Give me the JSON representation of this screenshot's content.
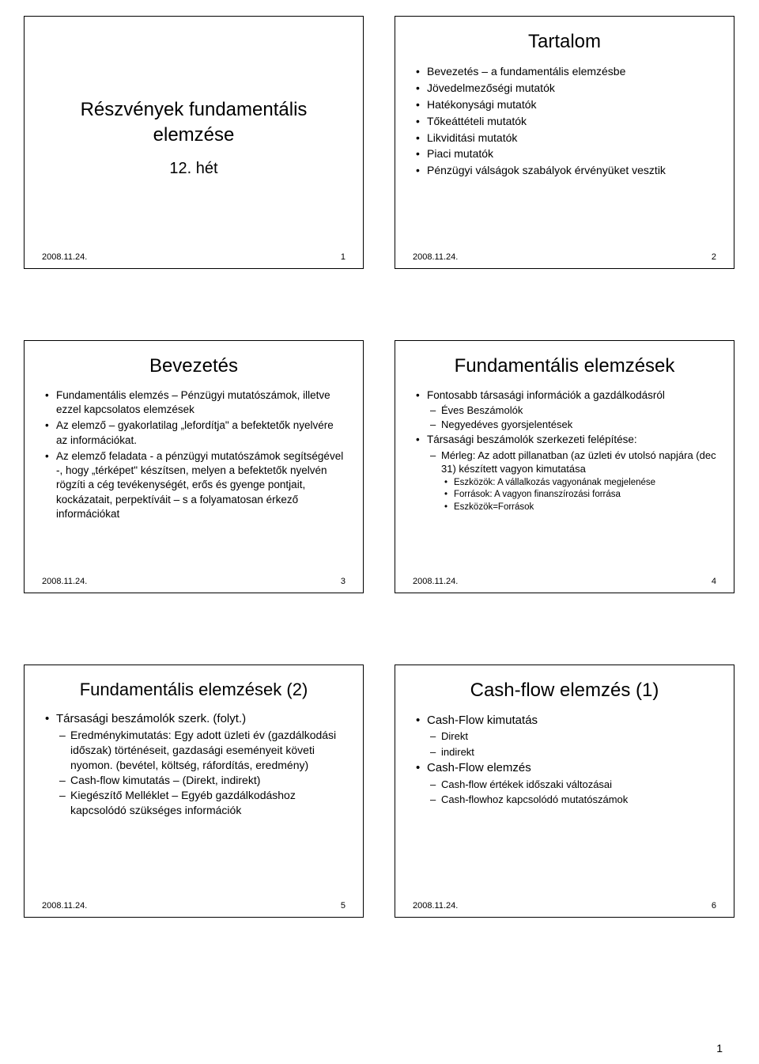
{
  "page": {
    "number": "1",
    "background": "#ffffff",
    "text_color": "#000000"
  },
  "slides": [
    {
      "main_title": "Részvények fundamentális elemzése",
      "sub_title": "12. hét",
      "date": "2008.11.24.",
      "num": "1"
    },
    {
      "title": "Tartalom",
      "items": [
        "Bevezetés – a fundamentális elemzésbe",
        "Jövedelmezőségi mutatók",
        "Hatékonysági mutatók",
        "Tőkeáttételi mutatók",
        "Likviditási mutatók",
        "Piaci mutatók",
        "Pénzügyi válságok szabályok érvényüket vesztik"
      ],
      "date": "2008.11.24.",
      "num": "2"
    },
    {
      "title": "Bevezetés",
      "items": [
        "Fundamentális elemzés – Pénzügyi mutatószámok, illetve ezzel kapcsolatos elemzések",
        "Az elemző – gyakorlatilag „lefordítja\" a befektetők nyelvére az információkat.",
        "Az elemző feladata - a pénzügyi mutatószámok segítségével -, hogy „térképet\" készítsen, melyen a befektetők nyelvén rögzíti a cég tevékenységét, erős és gyenge pontjait, kockázatait, perpektíváit – s a folyamatosan érkező információkat"
      ],
      "date": "2008.11.24.",
      "num": "3"
    },
    {
      "title": "Fundamentális elemzések",
      "item1": "Fontosabb társasági információk a gazdálkodásról",
      "sub1a": "Éves Beszámolók",
      "sub1b": "Negyedéves gyorsjelentések",
      "item2": "Társasági beszámolók szerkezeti felépítése:",
      "sub2a": "Mérleg: Az adott pillanatban (az üzleti év utolsó napjára (dec 31) készített vagyon kimutatása",
      "subsub1": "Eszközök: A vállalkozás vagyonának megjelenése",
      "subsub2": "Források: A vagyon finanszírozási forrása",
      "subsub3": "Eszközök=Források",
      "date": "2008.11.24.",
      "num": "4"
    },
    {
      "title": "Fundamentális elemzések (2)",
      "item1": "Társasági beszámolók szerk. (folyt.)",
      "sub1": "Eredménykimutatás: Egy adott üzleti év (gazdálkodási időszak) történéseit, gazdasági eseményeit követi nyomon. (bevétel, költség, ráfordítás, eredmény)",
      "sub2": "Cash-flow kimutatás – (Direkt, indirekt)",
      "sub3": "Kiegészítő Melléklet – Egyéb gazdálkodáshoz kapcsolódó szükséges információk",
      "date": "2008.11.24.",
      "num": "5"
    },
    {
      "title": "Cash-flow elemzés (1)",
      "d1": "Cash-Flow kimutatás",
      "d1a": "Direkt",
      "d1b": "indirekt",
      "d2": "Cash-Flow elemzés",
      "d2a": "Cash-flow értékek időszaki változásai",
      "d2b": "Cash-flowhoz kapcsolódó mutatószámok",
      "date": "2008.11.24.",
      "num": "6"
    }
  ]
}
